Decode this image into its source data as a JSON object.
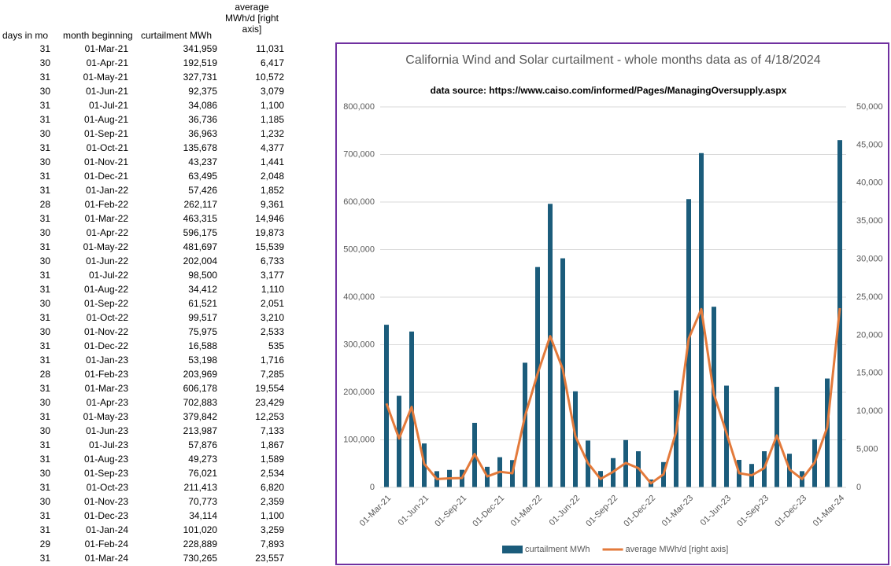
{
  "table": {
    "headers": [
      "days in mo",
      "month beginning",
      "curtailment MWh",
      "average MWh/d [right axis]"
    ],
    "rows": [
      [
        "31",
        "01-Mar-21",
        "341,959",
        "11,031"
      ],
      [
        "30",
        "01-Apr-21",
        "192,519",
        "6,417"
      ],
      [
        "31",
        "01-May-21",
        "327,731",
        "10,572"
      ],
      [
        "30",
        "01-Jun-21",
        "92,375",
        "3,079"
      ],
      [
        "31",
        "01-Jul-21",
        "34,086",
        "1,100"
      ],
      [
        "31",
        "01-Aug-21",
        "36,736",
        "1,185"
      ],
      [
        "30",
        "01-Sep-21",
        "36,963",
        "1,232"
      ],
      [
        "31",
        "01-Oct-21",
        "135,678",
        "4,377"
      ],
      [
        "30",
        "01-Nov-21",
        "43,237",
        "1,441"
      ],
      [
        "31",
        "01-Dec-21",
        "63,495",
        "2,048"
      ],
      [
        "31",
        "01-Jan-22",
        "57,426",
        "1,852"
      ],
      [
        "28",
        "01-Feb-22",
        "262,117",
        "9,361"
      ],
      [
        "31",
        "01-Mar-22",
        "463,315",
        "14,946"
      ],
      [
        "30",
        "01-Apr-22",
        "596,175",
        "19,873"
      ],
      [
        "31",
        "01-May-22",
        "481,697",
        "15,539"
      ],
      [
        "30",
        "01-Jun-22",
        "202,004",
        "6,733"
      ],
      [
        "31",
        "01-Jul-22",
        "98,500",
        "3,177"
      ],
      [
        "31",
        "01-Aug-22",
        "34,412",
        "1,110"
      ],
      [
        "30",
        "01-Sep-22",
        "61,521",
        "2,051"
      ],
      [
        "31",
        "01-Oct-22",
        "99,517",
        "3,210"
      ],
      [
        "30",
        "01-Nov-22",
        "75,975",
        "2,533"
      ],
      [
        "31",
        "01-Dec-22",
        "16,588",
        "535"
      ],
      [
        "31",
        "01-Jan-23",
        "53,198",
        "1,716"
      ],
      [
        "28",
        "01-Feb-23",
        "203,969",
        "7,285"
      ],
      [
        "31",
        "01-Mar-23",
        "606,178",
        "19,554"
      ],
      [
        "30",
        "01-Apr-23",
        "702,883",
        "23,429"
      ],
      [
        "31",
        "01-May-23",
        "379,842",
        "12,253"
      ],
      [
        "30",
        "01-Jun-23",
        "213,987",
        "7,133"
      ],
      [
        "31",
        "01-Jul-23",
        "57,876",
        "1,867"
      ],
      [
        "31",
        "01-Aug-23",
        "49,273",
        "1,589"
      ],
      [
        "30",
        "01-Sep-23",
        "76,021",
        "2,534"
      ],
      [
        "31",
        "01-Oct-23",
        "211,413",
        "6,820"
      ],
      [
        "30",
        "01-Nov-23",
        "70,773",
        "2,359"
      ],
      [
        "31",
        "01-Dec-23",
        "34,114",
        "1,100"
      ],
      [
        "31",
        "01-Jan-24",
        "101,020",
        "3,259"
      ],
      [
        "29",
        "01-Feb-24",
        "228,889",
        "7,893"
      ],
      [
        "31",
        "01-Mar-24",
        "730,265",
        "23,557"
      ]
    ]
  },
  "chart_data": {
    "type": "bar",
    "title": "California Wind and Solar curtailment - whole months data as of 4/18/2024",
    "subtitle": "data source: https://www.caiso.com/informed/Pages/ManagingOversupply.aspx",
    "categories": [
      "01-Mar-21",
      null,
      null,
      "01-Jun-21",
      null,
      null,
      "01-Sep-21",
      null,
      null,
      "01-Dec-21",
      null,
      null,
      "01-Mar-22",
      null,
      null,
      "01-Jun-22",
      null,
      null,
      "01-Sep-22",
      null,
      null,
      "01-Dec-22",
      null,
      null,
      "01-Mar-23",
      null,
      null,
      "01-Jun-23",
      null,
      null,
      "01-Sep-23",
      null,
      null,
      "01-Dec-23",
      null,
      null,
      "01-Mar-24"
    ],
    "series": [
      {
        "name": "curtailment MWh",
        "color": "#1b5c7b",
        "values": [
          341959,
          192519,
          327731,
          92375,
          34086,
          36736,
          36963,
          135678,
          43237,
          63495,
          57426,
          262117,
          463315,
          596175,
          481697,
          202004,
          98500,
          34412,
          61521,
          99517,
          75975,
          16588,
          53198,
          203969,
          606178,
          702883,
          379842,
          213987,
          57876,
          49273,
          76021,
          211413,
          70773,
          34114,
          101020,
          228889,
          730265
        ]
      },
      {
        "name": "average MWh/d [right axis]",
        "color": "#e37a3b",
        "axis": "y2",
        "type": "line",
        "values": [
          11031,
          6417,
          10572,
          3079,
          1100,
          1185,
          1232,
          4377,
          1441,
          2048,
          1852,
          9361,
          14946,
          19873,
          15539,
          6733,
          3177,
          1110,
          2051,
          3210,
          2533,
          535,
          1716,
          7285,
          19554,
          23429,
          12253,
          7133,
          1867,
          1589,
          2534,
          6820,
          2359,
          1100,
          3259,
          7893,
          23557
        ]
      }
    ],
    "ylim": [
      0,
      800000
    ],
    "yticks": [
      0,
      {
        "value": 100000,
        "label": "100,000"
      },
      {
        "value": 200000,
        "label": "200,000"
      },
      {
        "value": 300000,
        "label": "300,000"
      },
      {
        "value": 400000,
        "label": "400,000"
      },
      {
        "value": 500000,
        "label": "500,000"
      },
      {
        "value": 600000,
        "label": "600,000"
      },
      {
        "value": 700000,
        "label": "700,000"
      },
      {
        "value": 800000,
        "label": "800,000"
      }
    ],
    "y2lim": [
      0,
      50000
    ],
    "y2ticks": [
      0,
      {
        "value": 5000,
        "label": "5,000"
      },
      {
        "value": 10000,
        "label": "10,000"
      },
      {
        "value": 15000,
        "label": "15,000"
      },
      {
        "value": 20000,
        "label": "20,000"
      },
      {
        "value": 25000,
        "label": "25,000"
      },
      {
        "value": 30000,
        "label": "30,000"
      },
      {
        "value": 35000,
        "label": "35,000"
      },
      {
        "value": 40000,
        "label": "40,000"
      },
      {
        "value": 45000,
        "label": "45,000"
      },
      {
        "value": 50000,
        "label": "50,000"
      }
    ],
    "grid": true,
    "legend": "bottom"
  }
}
